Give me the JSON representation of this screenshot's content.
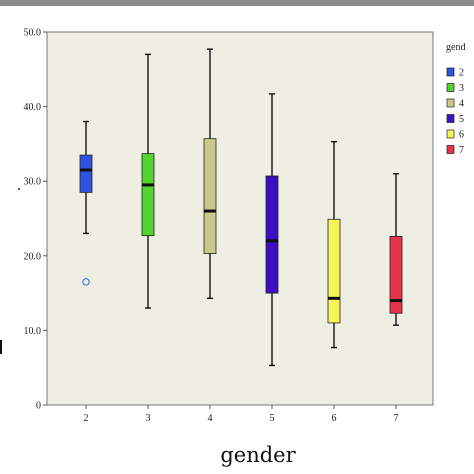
{
  "chart_data": {
    "type": "boxplot",
    "xlabel": "gender",
    "ylabel": "",
    "ylim": [
      0,
      50
    ],
    "y_ticks": [
      "0",
      "10.0",
      "20.0",
      "30.0",
      "40.0",
      "50.0"
    ],
    "y_tick_values": [
      0,
      10,
      20,
      30,
      40,
      50
    ],
    "categories": [
      "2",
      "3",
      "4",
      "5",
      "6",
      "7"
    ],
    "legend_title": "gend",
    "legend_placement": "right",
    "grid": false,
    "series": [
      {
        "name": "2",
        "color": "#2f52e0",
        "whisker_low": 23,
        "q1": 28.5,
        "median": 31.5,
        "q3": 33.5,
        "whisker_high": 38,
        "outliers": [
          16.5
        ]
      },
      {
        "name": "3",
        "color": "#54d22f",
        "whisker_low": 13,
        "q1": 22.7,
        "median": 29.5,
        "q3": 33.7,
        "whisker_high": 47,
        "outliers": []
      },
      {
        "name": "4",
        "color": "#c9ca8a",
        "whisker_low": 14.3,
        "q1": 20.3,
        "median": 26,
        "q3": 35.7,
        "whisker_high": 47.7,
        "outliers": []
      },
      {
        "name": "5",
        "color": "#3b10c4",
        "whisker_low": 5.3,
        "q1": 15,
        "median": 22,
        "q3": 30.7,
        "whisker_high": 41.7,
        "outliers": []
      },
      {
        "name": "6",
        "color": "#f6f65a",
        "whisker_low": 7.7,
        "q1": 11,
        "median": 14.3,
        "q3": 24.9,
        "whisker_high": 35.3,
        "outliers": []
      },
      {
        "name": "7",
        "color": "#e8334e",
        "whisker_low": 10.7,
        "q1": 12.3,
        "median": 14,
        "q3": 22.6,
        "whisker_high": 31,
        "outliers": []
      }
    ]
  }
}
